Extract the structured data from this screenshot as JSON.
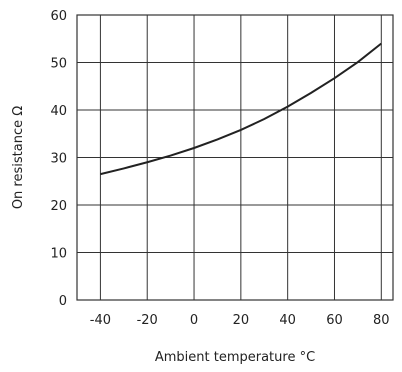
{
  "chart_data": {
    "type": "line",
    "title": "",
    "xlabel": "Ambient temperature °C",
    "ylabel": "On resistance Ω",
    "xlim": [
      -50,
      85
    ],
    "ylim": [
      0,
      60
    ],
    "x_ticks": [
      -40,
      -20,
      0,
      20,
      40,
      60,
      80
    ],
    "y_ticks": [
      0,
      10,
      20,
      30,
      40,
      50,
      60
    ],
    "x_tick_labels": [
      "-40",
      "-20",
      "0",
      "20",
      "40",
      "60",
      "80"
    ],
    "y_tick_labels": [
      "0",
      "10",
      "20",
      "30",
      "40",
      "50",
      "60"
    ],
    "grid": true,
    "legend": "none",
    "series": [
      {
        "x": [
          -40,
          -30,
          -20,
          -10,
          0,
          10,
          20,
          30,
          40,
          50,
          60,
          70,
          80
        ],
        "y": [
          26.5,
          27.7,
          29.0,
          30.4,
          32.0,
          33.8,
          35.8,
          38.1,
          40.7,
          43.6,
          46.7,
          50.1,
          54.0
        ],
        "color": "#222222"
      }
    ]
  }
}
